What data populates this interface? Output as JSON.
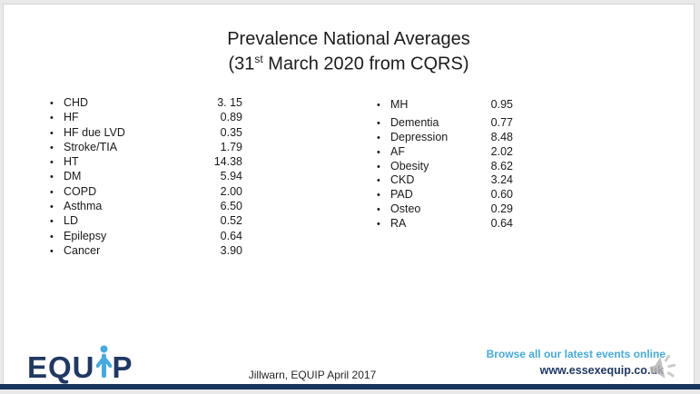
{
  "title": {
    "line1": "Prevalence National Averages",
    "line2_pre": "(31",
    "line2_sup": "st",
    "line2_post": " March 2020 from CQRS)"
  },
  "left_list": {
    "items": [
      {
        "label": "CHD",
        "value": "3. 15"
      },
      {
        "label": "HF",
        "value": "0.89"
      },
      {
        "label": "HF due LVD",
        "value": "0.35"
      },
      {
        "label": "Stroke/TIA",
        "value": "1.79"
      },
      {
        "label": "HT",
        "value": "14.38"
      },
      {
        "label": "DM",
        "value": "5.94"
      },
      {
        "label": "COPD",
        "value": "2.00"
      },
      {
        "label": "Asthma",
        "value": "6.50"
      },
      {
        "label": "LD",
        "value": "0.52"
      },
      {
        "label": "Epilepsy",
        "value": "0.64"
      },
      {
        "label": "Cancer",
        "value": "3.90"
      }
    ]
  },
  "right_list": {
    "items": [
      {
        "label": "MH",
        "value": "0.95"
      },
      {
        "label": "Dementia",
        "value": "0.77"
      },
      {
        "label": "Depression",
        "value": "8.48"
      },
      {
        "label": "AF",
        "value": "2.02"
      },
      {
        "label": "Obesity",
        "value": "8.62"
      },
      {
        "label": "CKD",
        "value": "3.24"
      },
      {
        "label": "PAD",
        "value": "0.60"
      },
      {
        "label": "Osteo",
        "value": "0.29"
      },
      {
        "label": "RA",
        "value": "0.64"
      }
    ]
  },
  "logo": {
    "text_left": "EQU",
    "text_right": "P",
    "person_icon": "person-up-arrow-icon"
  },
  "footer": {
    "citation": "Jillwarn, EQUIP April 2017",
    "browse_text": "Browse all our latest events online",
    "website": "www.essexequip.co.uk",
    "speaker_icon": "speaker-audio-icon"
  },
  "colors": {
    "navy": "#1f3864",
    "logo_navy": "#203864",
    "light_blue": "#45aadf",
    "bottom_bar": "#17365d",
    "body_text": "#1a1a1a",
    "speaker_gray": "#b5b5b5"
  }
}
